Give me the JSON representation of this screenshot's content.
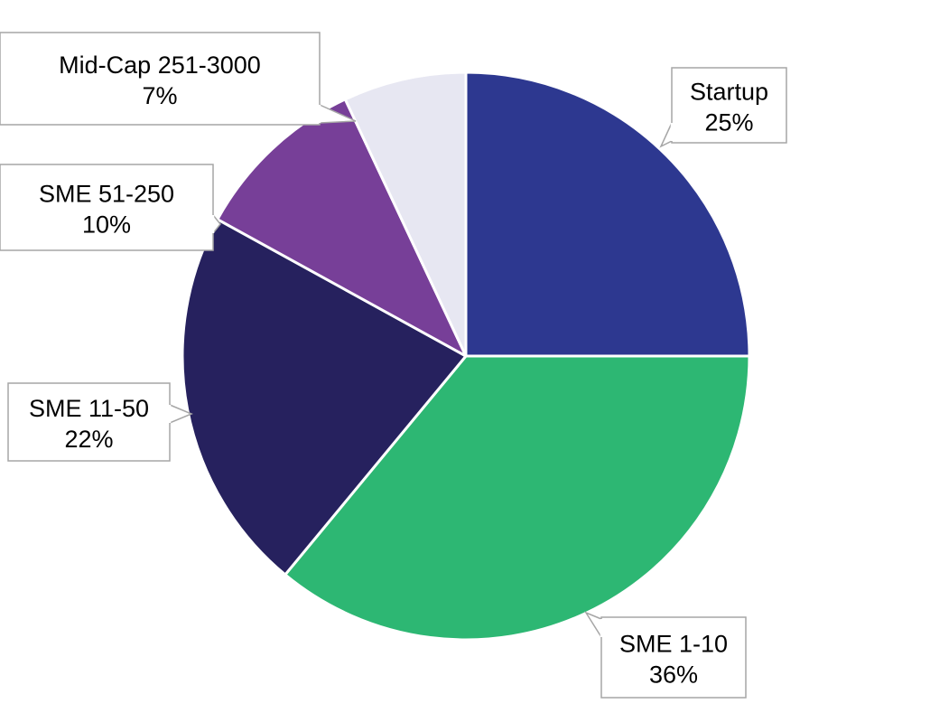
{
  "chart_data": {
    "type": "pie",
    "title": "",
    "slices": [
      {
        "label": "Startup",
        "value": 25,
        "value_label": "25%",
        "color": "#2d3890"
      },
      {
        "label": "SME 1-10",
        "value": 36,
        "value_label": "36%",
        "color": "#2db773"
      },
      {
        "label": "SME 11-50",
        "value": 22,
        "value_label": "22%",
        "color": "#26215e"
      },
      {
        "label": "SME 51-250",
        "value": 10,
        "value_label": "10%",
        "color": "#773f98"
      },
      {
        "label": "Mid-Cap 251-3000",
        "value": 7,
        "value_label": "7%",
        "color": "#e7e7f2"
      }
    ],
    "start_angle_deg": 0,
    "direction": "clockwise",
    "slice_border_color": "#ffffff",
    "data_labels": "callouts",
    "legend": "none"
  }
}
